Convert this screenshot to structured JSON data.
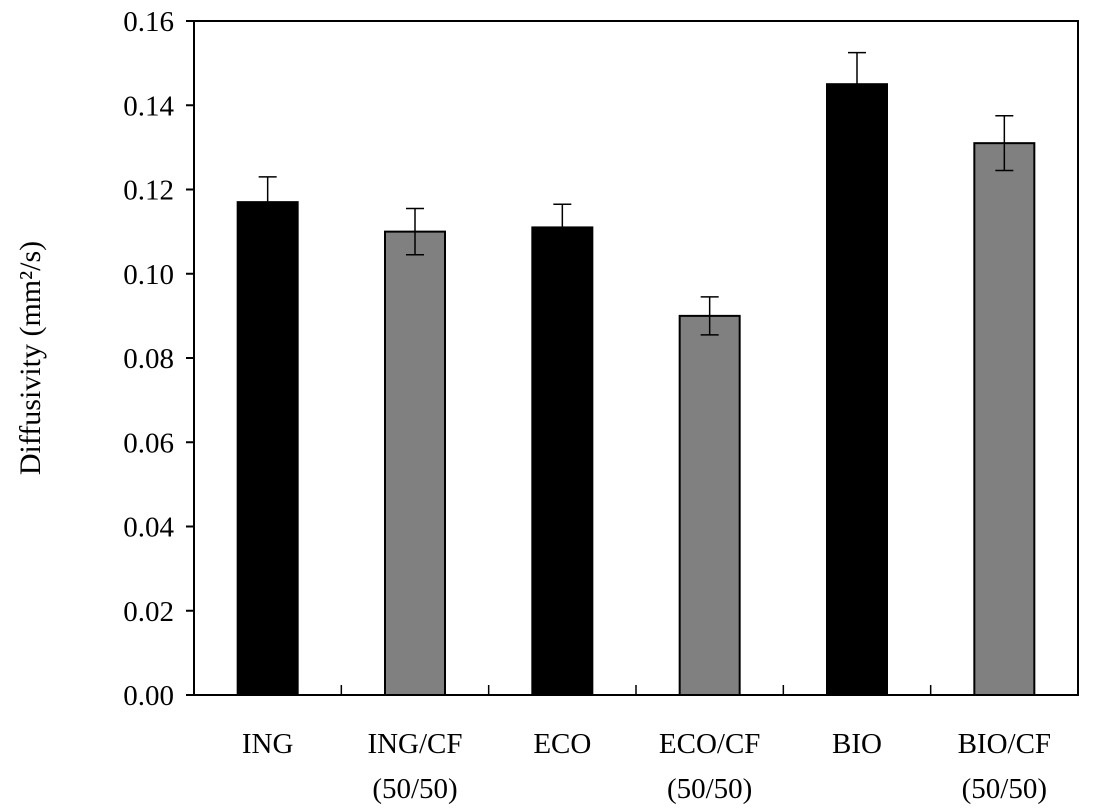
{
  "chart_data": {
    "type": "bar",
    "categories": [
      [
        "ING"
      ],
      [
        "ING/CF",
        "(50/50)"
      ],
      [
        "ECO"
      ],
      [
        "ECO/CF",
        "(50/50)"
      ],
      [
        "BIO"
      ],
      [
        "BIO/CF",
        "(50/50)"
      ]
    ],
    "values": [
      0.117,
      0.11,
      0.111,
      0.09,
      0.145,
      0.131
    ],
    "errors": [
      0.006,
      0.0055,
      0.0055,
      0.0045,
      0.0075,
      0.0065
    ],
    "bar_colors": [
      "#000000",
      "#808080",
      "#000000",
      "#808080",
      "#000000",
      "#808080"
    ],
    "ylabel": "Diffusivity (mm²/s)",
    "xlabel": "",
    "ylim": [
      0.0,
      0.16
    ],
    "yticks": [
      "0.00",
      "0.02",
      "0.04",
      "0.06",
      "0.08",
      "0.10",
      "0.12",
      "0.14",
      "0.16"
    ],
    "grid": false,
    "legend": "none"
  }
}
